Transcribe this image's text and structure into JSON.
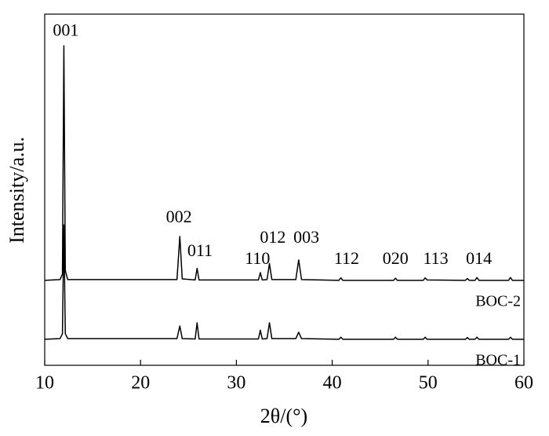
{
  "chart_data": {
    "type": "line",
    "xlabel": "2θ/(°)",
    "ylabel": "Intensity/a.u.",
    "x": [
      10,
      11.6,
      11.85,
      12.0,
      12.15,
      12.4,
      23.8,
      24.1,
      24.35,
      25.7,
      25.9,
      26.1,
      32.3,
      32.5,
      32.7,
      33.2,
      33.45,
      33.7,
      36.2,
      36.5,
      36.8,
      40.7,
      40.9,
      41.1,
      46.4,
      46.6,
      46.8,
      49.5,
      49.7,
      49.9,
      53.9,
      54.1,
      54.3,
      54.9,
      55.1,
      55.3,
      58.4,
      58.6,
      58.8,
      60
    ],
    "series": [
      {
        "name": "BOC-2",
        "color": "#000000",
        "values": [
          24.2,
          24.4,
          26,
          91,
          27,
          24.4,
          24.4,
          36.7,
          24.6,
          24.3,
          27.6,
          24.3,
          24.3,
          26.4,
          24.3,
          24.4,
          29,
          24.4,
          24.4,
          30,
          24.4,
          24.2,
          24.9,
          24.2,
          24.2,
          24.8,
          24.2,
          24.2,
          24.9,
          24.3,
          24.2,
          24.7,
          24.2,
          24.2,
          25,
          24.2,
          24.2,
          25,
          24.2,
          24.2
        ]
      },
      {
        "name": "BOC-1",
        "color": "#000000",
        "values": [
          7.4,
          7.6,
          9,
          40,
          9,
          7.6,
          7.6,
          11.2,
          7.6,
          7.5,
          12.1,
          7.5,
          7.5,
          10,
          7.5,
          7.6,
          12.1,
          7.6,
          7.6,
          9.4,
          7.6,
          7.4,
          8,
          7.4,
          7.4,
          8,
          7.4,
          7.4,
          8,
          7.4,
          7.4,
          7.9,
          7.4,
          7.4,
          8,
          7.4,
          7.4,
          8,
          7.4,
          7.4
        ]
      }
    ],
    "annotations": [
      {
        "text": "001",
        "x": 12.2,
        "y": 95
      },
      {
        "text": "002",
        "x": 24,
        "y": 41.8
      },
      {
        "text": "011",
        "x": 26.2,
        "y": 32.2
      },
      {
        "text": "110",
        "x": 32.2,
        "y": 30
      },
      {
        "text": "012",
        "x": 33.8,
        "y": 36
      },
      {
        "text": "003",
        "x": 37.3,
        "y": 36
      },
      {
        "text": "112",
        "x": 41.5,
        "y": 30
      },
      {
        "text": "020",
        "x": 46.6,
        "y": 30
      },
      {
        "text": "113",
        "x": 50.8,
        "y": 30
      },
      {
        "text": "014",
        "x": 55.3,
        "y": 30
      }
    ],
    "xlim": [
      10,
      60
    ],
    "xticks": [
      10,
      20,
      30,
      40,
      50,
      60
    ],
    "ylim": [
      0,
      100
    ]
  }
}
